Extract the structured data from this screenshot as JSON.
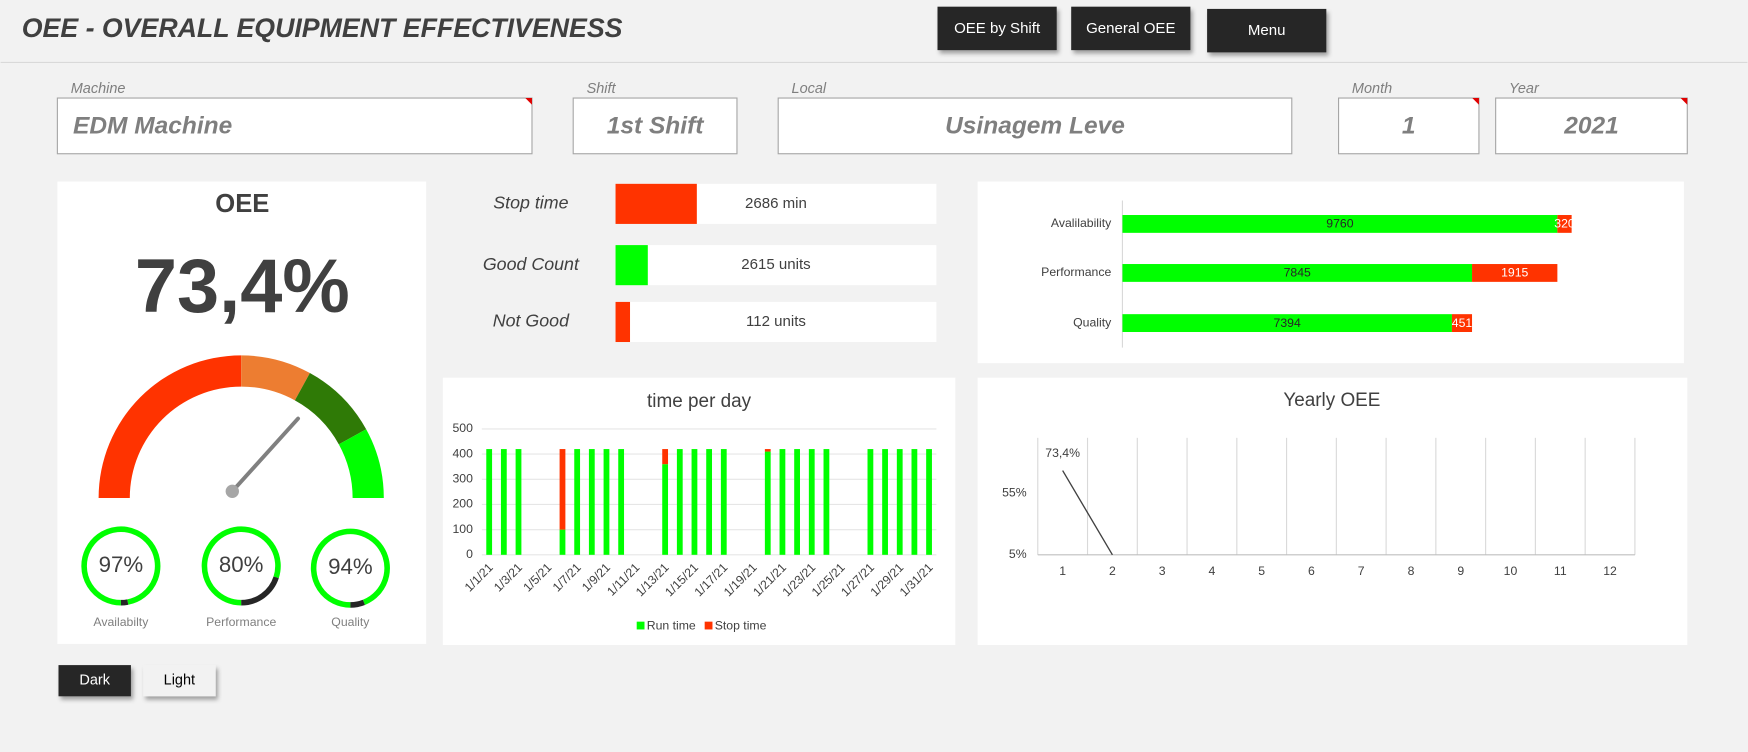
{
  "header": {
    "title": "OEE - OVERALL EQUIPMENT EFFECTIVENESS",
    "buttons": [
      "OEE by Shift",
      "General OEE",
      "Menu"
    ]
  },
  "filters": [
    {
      "label": "Machine",
      "value": "EDM Machine"
    },
    {
      "label": "Shift",
      "value": "1st Shift"
    },
    {
      "label": "Local",
      "value": "Usinagem Leve"
    },
    {
      "label": "Month",
      "value": 1
    },
    {
      "label": "Year",
      "value": 2021
    }
  ],
  "oee": {
    "title": "OEE",
    "value": 73.4,
    "value_label": "73,4%",
    "needle_color": "#808080",
    "gauge": {
      "range": [
        0,
        100
      ],
      "bands": [
        {
          "to": 50,
          "color": "#ff3300"
        },
        {
          "to": 66,
          "color": "#ed7d31"
        },
        {
          "to": 84,
          "color": "#2f7a06"
        },
        {
          "to": 100,
          "color": "#00ff00"
        }
      ]
    }
  },
  "rings": {
    "categories": [
      "Availabilty",
      "Performance",
      "Quality"
    ],
    "values": [
      97,
      80,
      94
    ],
    "value_labels": [
      "97%",
      "80%",
      "94%"
    ],
    "color": "#00ff00",
    "rest_color": "#262626"
  },
  "kpis": [
    {
      "label": "Stop time",
      "value": 2686,
      "value_label": "2686 min",
      "color": "#ff3300",
      "xlim": [
        0,
        10600
      ]
    },
    {
      "label": "Good Count",
      "value": 2615,
      "value_label": "2615 units",
      "color": "#00ff00",
      "xlim": [
        0,
        26000
      ]
    },
    {
      "label": "Not Good",
      "value": 112,
      "value_label": "112 units",
      "color": "#ff3300",
      "xlim": [
        0,
        2480
      ]
    }
  ],
  "themes": [
    "Dark",
    "Light"
  ],
  "chart_data": [
    {
      "type": "hbar",
      "categories": [
        "Avalilability",
        "Performance",
        "Quality"
      ],
      "series": [
        {
          "color": "#00ff00",
          "values": [
            9760,
            7845,
            7394
          ]
        },
        {
          "color": "#ff3300",
          "values": [
            320,
            1915,
            451
          ]
        }
      ],
      "xlim": [
        0,
        12500
      ]
    },
    {
      "type": "bar",
      "title": "time per day",
      "categories": [
        "1/1/21",
        null,
        "1/3/21",
        null,
        "1/5/21",
        null,
        "1/7/21",
        null,
        "1/9/21",
        null,
        "1/11/21",
        null,
        "1/13/21",
        null,
        "1/15/21",
        null,
        "1/17/21",
        null,
        "1/19/21",
        null,
        "1/21/21",
        null,
        "1/23/21",
        null,
        "1/25/21",
        null,
        "1/27/21",
        null,
        "1/29/21",
        null,
        "1/31/21"
      ],
      "series": [
        {
          "name": "Run time",
          "color": "#00ff00",
          "values": [
            420,
            420,
            420,
            0,
            0,
            100,
            420,
            420,
            420,
            420,
            0,
            0,
            360,
            420,
            420,
            420,
            420,
            0,
            0,
            410,
            420,
            420,
            420,
            420,
            0,
            0,
            420,
            420,
            420,
            420,
            420
          ]
        },
        {
          "name": "Stop time",
          "color": "#ff3300",
          "values": [
            0,
            0,
            0,
            0,
            0,
            320,
            0,
            0,
            0,
            0,
            0,
            0,
            60,
            0,
            0,
            0,
            0,
            0,
            0,
            10,
            0,
            0,
            0,
            0,
            0,
            0,
            0,
            0,
            0,
            0,
            0
          ]
        }
      ],
      "ylim": [
        0,
        500
      ],
      "yticks": [
        0,
        100,
        200,
        300,
        400,
        500
      ],
      "grid": true,
      "legend": "bottom"
    },
    {
      "type": "line",
      "title": "Yearly OEE",
      "categories": [
        1,
        2,
        3,
        4,
        5,
        6,
        7,
        8,
        9,
        10,
        11,
        12
      ],
      "values": [
        73.4,
        5,
        null,
        null,
        null,
        null,
        null,
        null,
        null,
        null,
        null,
        null
      ],
      "value_labels": [
        "73,4%",
        null,
        null,
        null,
        null,
        null,
        null,
        null,
        null,
        null,
        null,
        null
      ],
      "ylim": [
        5,
        100
      ],
      "yticks": [
        {
          "value": 5,
          "label": "5%"
        },
        {
          "value": 55,
          "label": "55%"
        }
      ],
      "color": "#404040",
      "grid": true
    }
  ]
}
